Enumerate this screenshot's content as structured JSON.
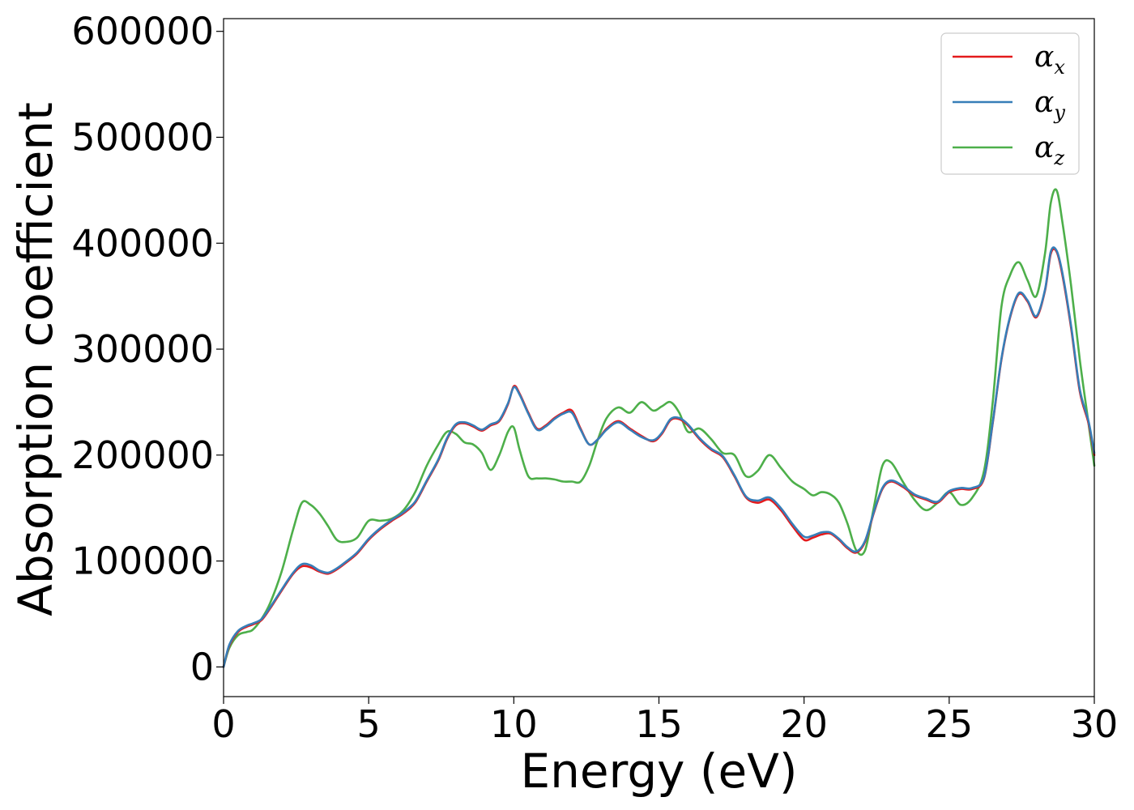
{
  "chart_data": {
    "type": "line",
    "xlabel": "Energy (eV)",
    "ylabel": "Absorption coefficient",
    "xlim": [
      0,
      30
    ],
    "ylim": [
      -28000,
      612000
    ],
    "xticks": [
      0,
      5,
      10,
      15,
      20,
      25,
      30
    ],
    "yticks": [
      0,
      100000,
      200000,
      300000,
      400000,
      500000,
      600000
    ],
    "grid": false,
    "legend_position": "top-right",
    "series": [
      {
        "name": "αx",
        "symbol": "α",
        "subscript": "x",
        "color": "#e41a1c",
        "x": [
          0,
          0.2,
          0.5,
          0.8,
          1.0,
          1.3,
          1.6,
          2.0,
          2.4,
          2.7,
          3.0,
          3.3,
          3.6,
          3.9,
          4.2,
          4.6,
          5.0,
          5.4,
          5.8,
          6.2,
          6.6,
          7.0,
          7.4,
          7.7,
          8.0,
          8.3,
          8.6,
          8.9,
          9.2,
          9.5,
          9.8,
          10.0,
          10.2,
          10.5,
          10.8,
          11.1,
          11.4,
          11.7,
          12.0,
          12.3,
          12.6,
          12.9,
          13.2,
          13.6,
          14.0,
          14.4,
          14.8,
          15.1,
          15.4,
          15.7,
          16.0,
          16.4,
          16.8,
          17.2,
          17.6,
          18.0,
          18.4,
          18.8,
          19.2,
          19.6,
          20.0,
          20.3,
          20.6,
          20.9,
          21.2,
          21.5,
          21.8,
          22.1,
          22.4,
          22.7,
          23.0,
          23.4,
          23.8,
          24.2,
          24.6,
          25.0,
          25.4,
          25.8,
          26.2,
          26.5,
          26.8,
          27.1,
          27.4,
          27.7,
          28.0,
          28.3,
          28.5,
          28.7,
          28.9,
          29.2,
          29.5,
          29.8,
          30.0
        ],
        "y": [
          0,
          20000,
          33000,
          38000,
          40000,
          44000,
          55000,
          72000,
          88000,
          95000,
          94000,
          90000,
          88000,
          92000,
          98000,
          107000,
          120000,
          130000,
          138000,
          145000,
          155000,
          175000,
          195000,
          215000,
          228000,
          230000,
          227000,
          223000,
          228000,
          232000,
          248000,
          265000,
          258000,
          240000,
          225000,
          228000,
          235000,
          240000,
          242000,
          225000,
          210000,
          215000,
          225000,
          232000,
          225000,
          218000,
          213000,
          220000,
          233000,
          234000,
          228000,
          215000,
          205000,
          198000,
          180000,
          160000,
          155000,
          158000,
          148000,
          133000,
          120000,
          122000,
          125000,
          126000,
          120000,
          112000,
          108000,
          118000,
          145000,
          168000,
          175000,
          170000,
          162000,
          158000,
          155000,
          165000,
          168000,
          168000,
          178000,
          230000,
          290000,
          330000,
          352000,
          345000,
          330000,
          355000,
          390000,
          392000,
          370000,
          320000,
          260000,
          230000,
          200000
        ]
      },
      {
        "name": "αy",
        "symbol": "α",
        "subscript": "y",
        "color": "#377eb8",
        "x": [
          0,
          0.2,
          0.5,
          0.8,
          1.0,
          1.3,
          1.6,
          2.0,
          2.4,
          2.7,
          3.0,
          3.3,
          3.6,
          3.9,
          4.2,
          4.6,
          5.0,
          5.4,
          5.8,
          6.2,
          6.6,
          7.0,
          7.4,
          7.7,
          8.0,
          8.3,
          8.6,
          8.9,
          9.2,
          9.5,
          9.8,
          10.0,
          10.2,
          10.5,
          10.8,
          11.1,
          11.4,
          11.7,
          12.0,
          12.3,
          12.6,
          12.9,
          13.2,
          13.6,
          14.0,
          14.4,
          14.8,
          15.1,
          15.4,
          15.7,
          16.0,
          16.4,
          16.8,
          17.2,
          17.6,
          18.0,
          18.4,
          18.8,
          19.2,
          19.6,
          20.0,
          20.3,
          20.6,
          20.9,
          21.2,
          21.5,
          21.8,
          22.1,
          22.4,
          22.7,
          23.0,
          23.4,
          23.8,
          24.2,
          24.6,
          25.0,
          25.4,
          25.8,
          26.2,
          26.5,
          26.8,
          27.1,
          27.4,
          27.7,
          28.0,
          28.3,
          28.5,
          28.7,
          28.9,
          29.2,
          29.5,
          29.8,
          30.0
        ],
        "y": [
          0,
          21000,
          34000,
          39000,
          41000,
          45000,
          56000,
          73000,
          89000,
          97000,
          96000,
          91000,
          89000,
          93000,
          99000,
          108000,
          121000,
          131000,
          139000,
          146000,
          156000,
          176000,
          196000,
          216000,
          229000,
          231000,
          228000,
          224000,
          229000,
          233000,
          249000,
          264000,
          257000,
          239000,
          224000,
          227000,
          234000,
          239000,
          240000,
          224000,
          210000,
          215000,
          224000,
          231000,
          224000,
          217000,
          214000,
          221000,
          234000,
          235000,
          229000,
          216000,
          206000,
          199000,
          181000,
          161000,
          157000,
          160000,
          150000,
          135000,
          123000,
          124000,
          127000,
          127000,
          121000,
          113000,
          109000,
          119000,
          146000,
          169000,
          176000,
          171000,
          163000,
          159000,
          156000,
          166000,
          169000,
          169000,
          179000,
          231000,
          291000,
          331000,
          353000,
          346000,
          331000,
          356000,
          392000,
          393000,
          372000,
          322000,
          262000,
          232000,
          202000
        ]
      },
      {
        "name": "αz",
        "symbol": "α",
        "subscript": "z",
        "color": "#4daf4a",
        "x": [
          0,
          0.2,
          0.5,
          0.8,
          1.0,
          1.3,
          1.6,
          2.0,
          2.4,
          2.7,
          3.0,
          3.3,
          3.6,
          3.9,
          4.2,
          4.6,
          5.0,
          5.4,
          5.8,
          6.2,
          6.6,
          7.0,
          7.4,
          7.7,
          8.0,
          8.3,
          8.6,
          8.9,
          9.2,
          9.5,
          9.8,
          10.0,
          10.2,
          10.5,
          10.8,
          11.1,
          11.4,
          11.7,
          12.0,
          12.3,
          12.6,
          12.9,
          13.2,
          13.6,
          14.0,
          14.4,
          14.8,
          15.1,
          15.4,
          15.7,
          16.0,
          16.4,
          16.8,
          17.2,
          17.6,
          18.0,
          18.4,
          18.8,
          19.2,
          19.6,
          20.0,
          20.3,
          20.6,
          20.9,
          21.2,
          21.5,
          21.8,
          22.1,
          22.4,
          22.7,
          23.0,
          23.4,
          23.8,
          24.2,
          24.6,
          25.0,
          25.4,
          25.8,
          26.2,
          26.5,
          26.8,
          27.1,
          27.4,
          27.7,
          28.0,
          28.3,
          28.5,
          28.7,
          28.9,
          29.2,
          29.5,
          29.8,
          30.0
        ],
        "y": [
          0,
          18000,
          30000,
          33000,
          35000,
          45000,
          60000,
          90000,
          130000,
          155000,
          153000,
          145000,
          133000,
          120000,
          118000,
          122000,
          138000,
          138000,
          140000,
          148000,
          165000,
          190000,
          210000,
          222000,
          220000,
          212000,
          210000,
          202000,
          186000,
          200000,
          222000,
          226000,
          205000,
          180000,
          178000,
          178000,
          177000,
          175000,
          175000,
          175000,
          190000,
          215000,
          235000,
          245000,
          240000,
          250000,
          242000,
          246000,
          250000,
          240000,
          222000,
          225000,
          215000,
          202000,
          200000,
          180000,
          185000,
          200000,
          188000,
          175000,
          168000,
          162000,
          165000,
          163000,
          155000,
          135000,
          110000,
          110000,
          150000,
          190000,
          193000,
          175000,
          158000,
          148000,
          155000,
          165000,
          153000,
          160000,
          185000,
          250000,
          340000,
          370000,
          382000,
          365000,
          350000,
          390000,
          438000,
          450000,
          420000,
          360000,
          290000,
          230000,
          190000
        ]
      }
    ]
  }
}
